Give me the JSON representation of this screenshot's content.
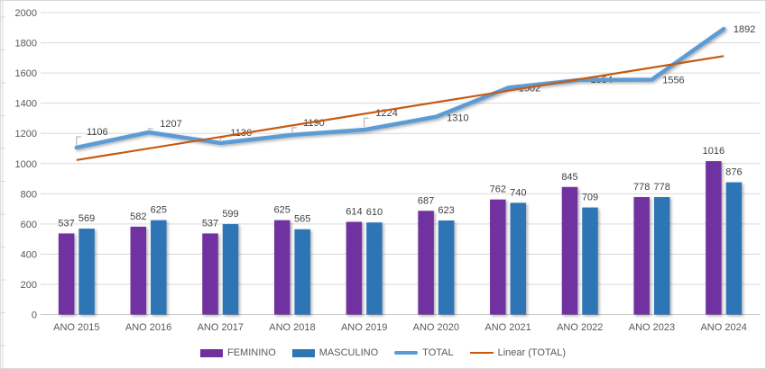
{
  "chart_data": {
    "type": "bar",
    "subtype": "combo-column-line-with-linear-trendline",
    "title": "",
    "categories": [
      "ANO 2015",
      "ANO 2016",
      "ANO 2017",
      "ANO 2018",
      "ANO 2019",
      "ANO 2020",
      "ANO 2021",
      "ANO 2022",
      "ANO 2023",
      "ANO 2024"
    ],
    "series": [
      {
        "name": "FEMININO",
        "type": "column",
        "color": "#7030A0",
        "values": [
          537,
          582,
          537,
          625,
          614,
          687,
          762,
          845,
          778,
          1016
        ]
      },
      {
        "name": "MASCULINO",
        "type": "column",
        "color": "#2E75B6",
        "values": [
          569,
          625,
          599,
          565,
          610,
          623,
          740,
          709,
          778,
          876
        ]
      },
      {
        "name": "TOTAL",
        "type": "line",
        "color": "#5B9BD5",
        "values": [
          1106,
          1207,
          1136,
          1190,
          1224,
          1310,
          1502,
          1554,
          1556,
          1892
        ]
      },
      {
        "name": "Linear (TOTAL)",
        "type": "linear-trendline",
        "color": "#C55A11",
        "based_on": "TOTAL"
      }
    ],
    "xlabel": "",
    "ylabel": "",
    "ylim": [
      0,
      2000
    ],
    "ytick_step": 200,
    "grid": true,
    "legend_position": "bottom",
    "colors": {
      "gridline": "#D9D9D9",
      "axis_line": "#C8C8C8",
      "axis_text": "#595959",
      "data_label": "#404040",
      "leader_line": "#A6A6A6",
      "sheet_edge": "#D9D9D9"
    },
    "total_label_layout": {
      "dx": [
        23,
        25,
        23,
        24,
        25,
        24,
        24,
        24,
        24,
        23
      ],
      "dy": [
        -18,
        -10,
        -12,
        -14,
        -19,
        1,
        0,
        -1,
        0,
        0
      ],
      "leader": [
        true,
        true,
        true,
        true,
        true,
        false,
        false,
        false,
        false,
        false
      ]
    }
  }
}
